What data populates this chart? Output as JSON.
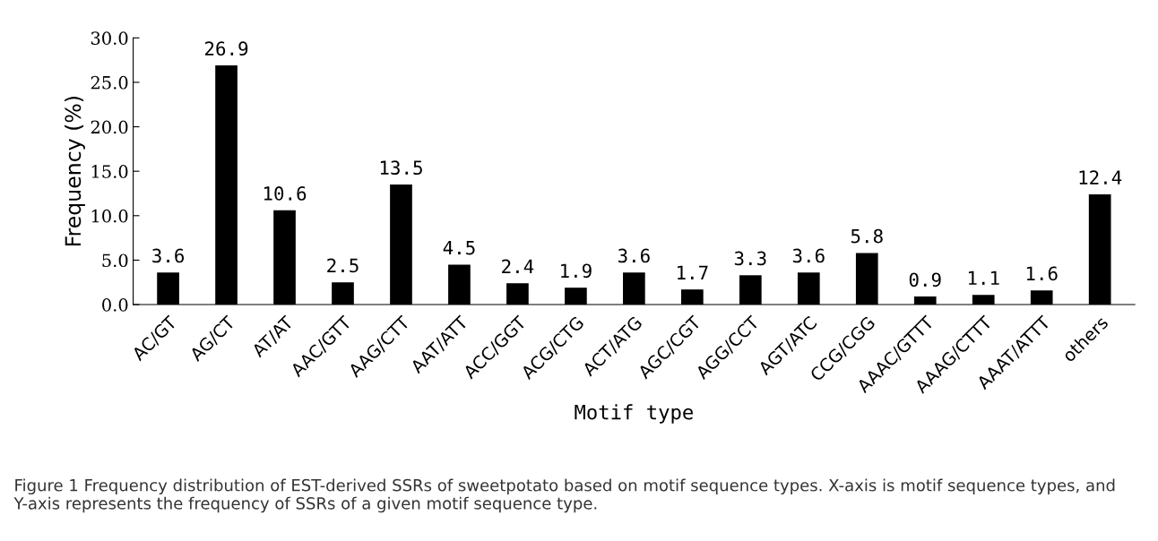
{
  "chart_data": {
    "type": "bar",
    "xlabel": "Motif type",
    "ylabel": "Frequency (%)",
    "categories": [
      "AC/GT",
      "AG/CT",
      "AT/AT",
      "AAC/GTT",
      "AAG/CTT",
      "AAT/ATT",
      "ACC/GGT",
      "ACG/CTG",
      "ACT/ATG",
      "AGC/CGT",
      "AGG/CCT",
      "AGT/ATC",
      "CCG/CGG",
      "AAAC/GTTT",
      "AAAG/CTTT",
      "AAAT/ATTT",
      "others"
    ],
    "values": [
      3.6,
      26.9,
      10.6,
      2.5,
      13.5,
      4.5,
      2.4,
      1.9,
      3.6,
      1.7,
      3.3,
      3.6,
      5.8,
      0.9,
      1.1,
      1.6,
      12.4
    ],
    "color": "#000000",
    "data_labels": true,
    "grid": false,
    "legend": false,
    "ylim": [
      0,
      30
    ],
    "yticks": [
      {
        "value": 0,
        "label": "0.0"
      },
      {
        "value": 5,
        "label": "5.0"
      },
      {
        "value": 10,
        "label": "10.0"
      },
      {
        "value": 15,
        "label": "15.0"
      },
      {
        "value": 20,
        "label": "20.0"
      },
      {
        "value": 25,
        "label": "25.0"
      },
      {
        "value": 30,
        "label": "30.0"
      }
    ],
    "annotations": [
      "Figure 1 Frequency distribution of EST-derived SSRs of sweetpotato based on motif sequence types. X-axis is motif sequence types, and Y-axis represents the frequency of SSRs of a given motif sequence type."
    ]
  }
}
